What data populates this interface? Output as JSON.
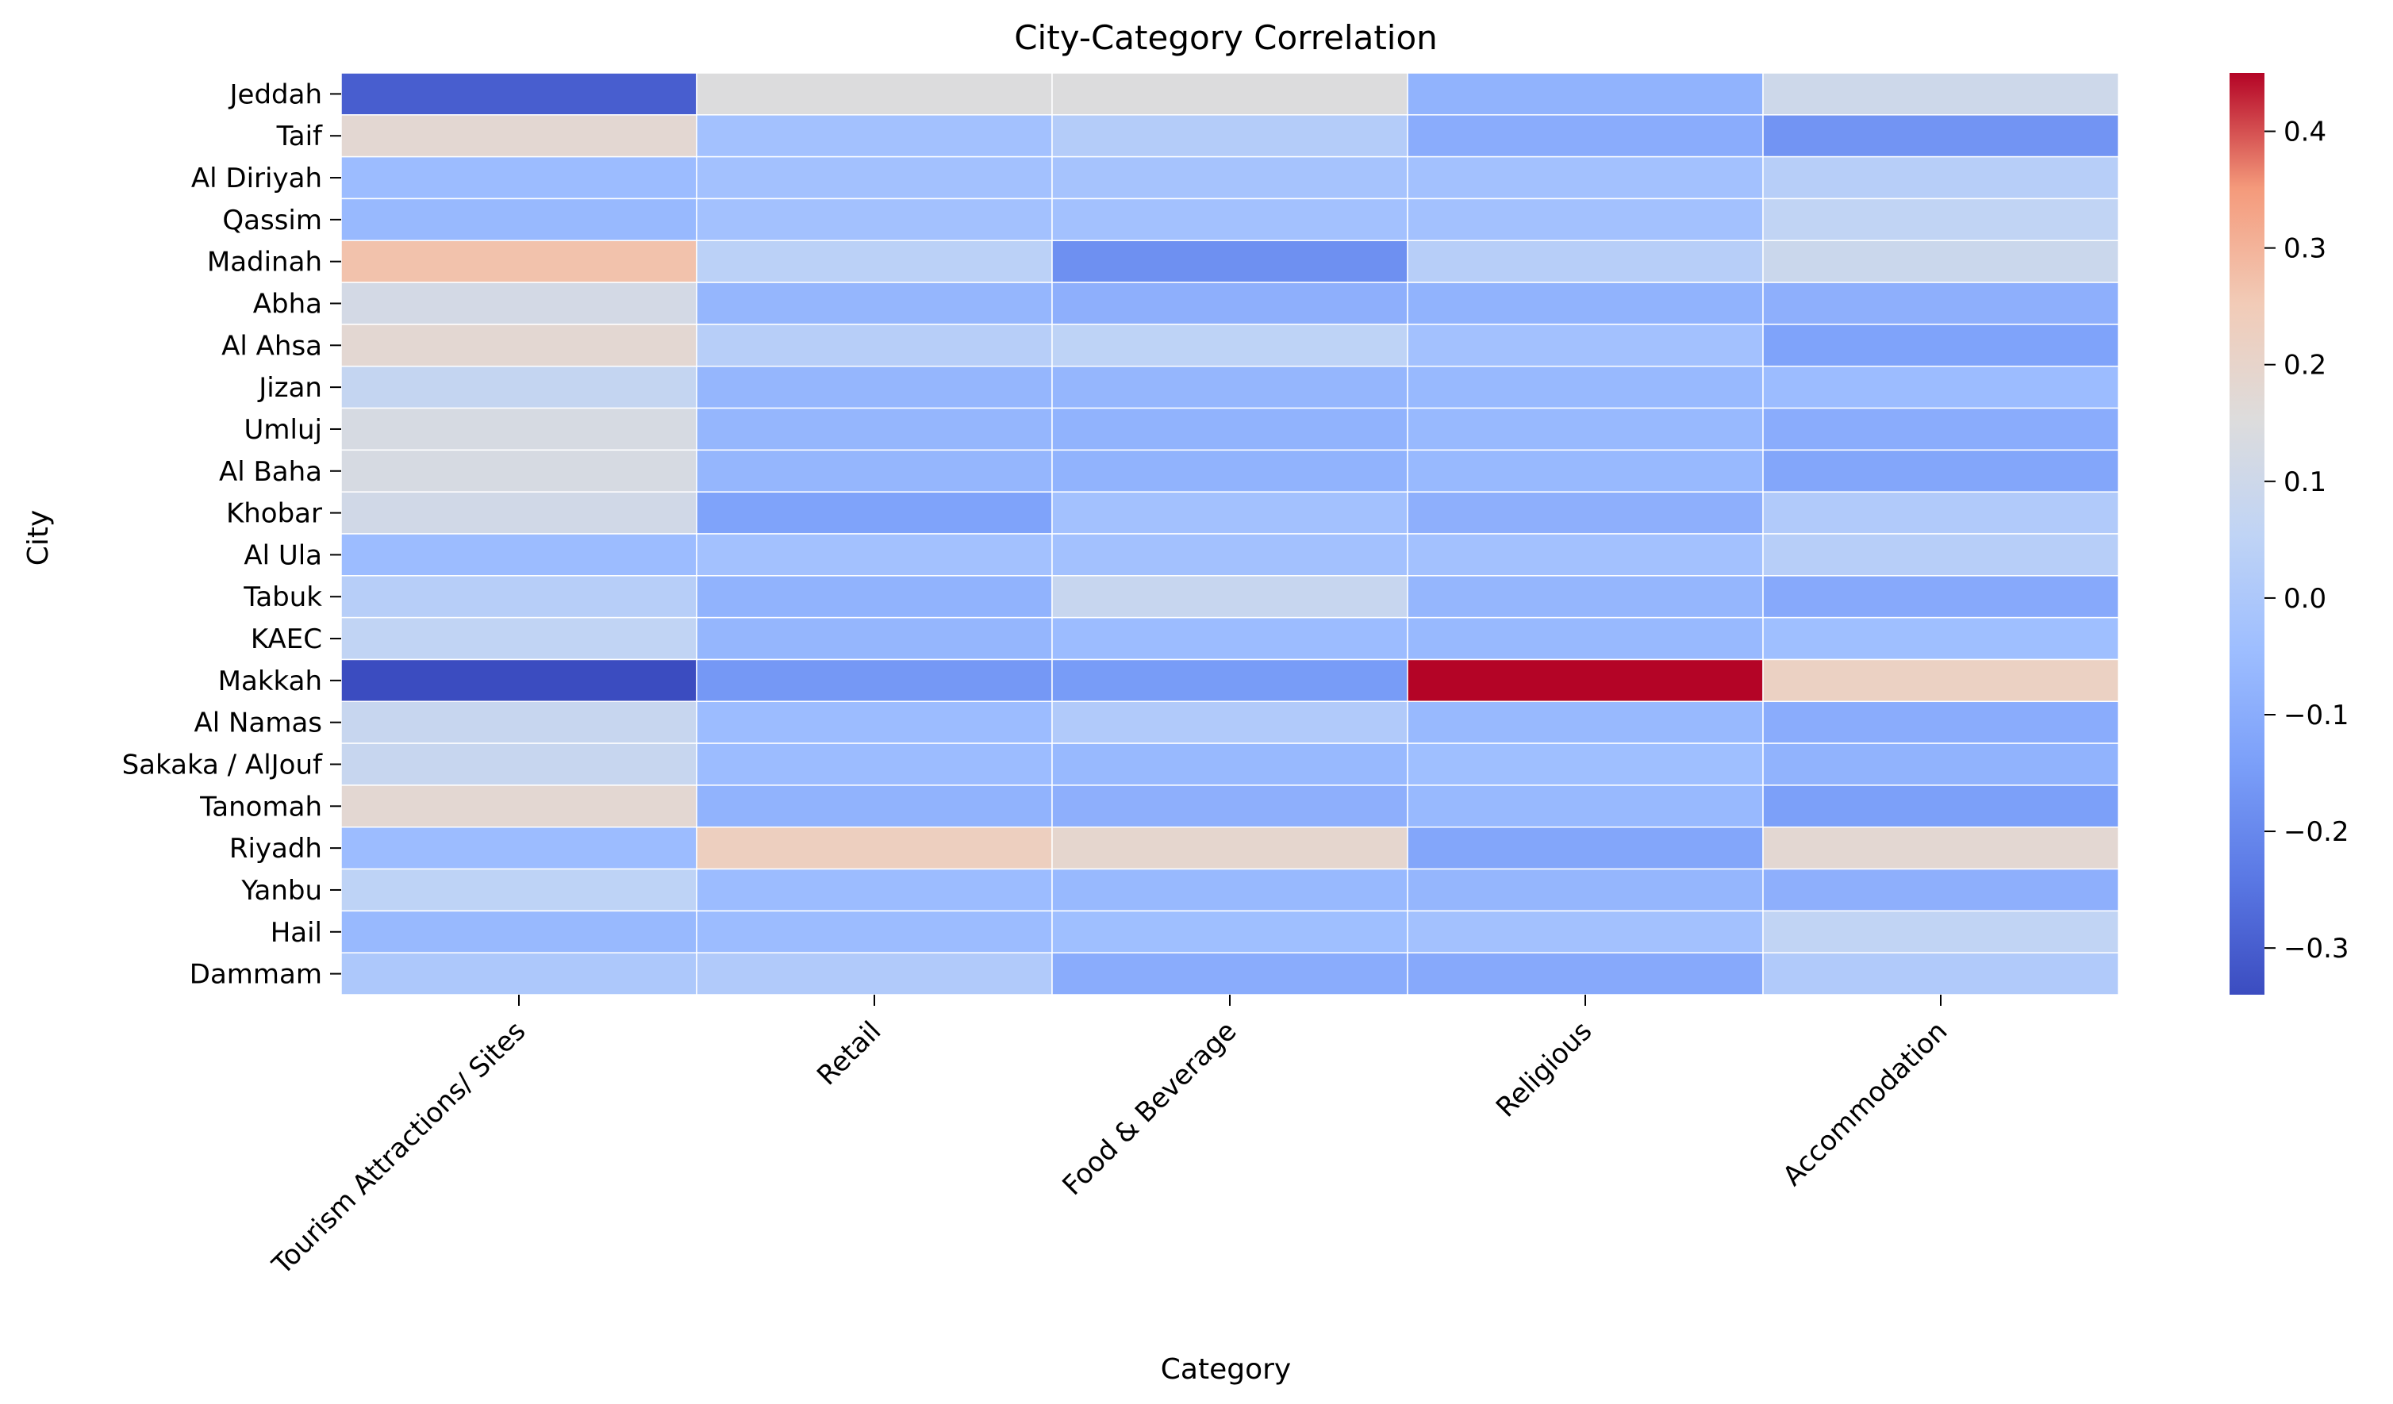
{
  "chart_data": {
    "type": "heatmap",
    "title": "City-Category Correlation",
    "xlabel": "Category",
    "ylabel": "City",
    "x_categories": [
      "Tourism Attractions/ Sites",
      "Retail",
      "Food & Beverage",
      "Religious",
      "Accommodation"
    ],
    "y_categories": [
      "Jeddah",
      "Taif",
      "Al Diriyah",
      "Qassim",
      "Madinah",
      "Abha",
      "Al Ahsa",
      "Jizan",
      "Umluj",
      "Al Baha",
      "Khobar",
      "Al Ula",
      "Tabuk",
      "KAEC",
      "Makkah",
      "Al Namas",
      "Sakaka / AlJouf",
      "Tanomah",
      "Riyadh",
      "Yanbu",
      "Hail",
      "Dammam"
    ],
    "values": [
      [
        -0.3,
        0.15,
        0.15,
        -0.08,
        0.1
      ],
      [
        0.18,
        -0.03,
        0.02,
        -0.1,
        -0.17
      ],
      [
        -0.05,
        -0.03,
        -0.02,
        -0.03,
        0.03
      ],
      [
        -0.06,
        -0.03,
        -0.03,
        -0.03,
        0.06
      ],
      [
        0.27,
        0.04,
        -0.18,
        0.03,
        0.09
      ],
      [
        0.12,
        -0.07,
        -0.09,
        -0.08,
        -0.09
      ],
      [
        0.18,
        0.03,
        0.05,
        -0.03,
        -0.13
      ],
      [
        0.07,
        -0.07,
        -0.07,
        -0.06,
        -0.05
      ],
      [
        0.13,
        -0.07,
        -0.08,
        -0.06,
        -0.1
      ],
      [
        0.13,
        -0.07,
        -0.08,
        -0.06,
        -0.12
      ],
      [
        0.11,
        -0.13,
        -0.03,
        -0.09,
        0.01
      ],
      [
        -0.05,
        -0.03,
        -0.03,
        -0.03,
        0.03
      ],
      [
        0.03,
        -0.08,
        0.08,
        -0.07,
        -0.11
      ],
      [
        0.06,
        -0.07,
        -0.05,
        -0.06,
        -0.04
      ],
      [
        -0.34,
        -0.16,
        -0.15,
        0.45,
        0.22
      ],
      [
        0.08,
        -0.05,
        0.01,
        -0.06,
        -0.1
      ],
      [
        0.08,
        -0.05,
        -0.06,
        -0.04,
        -0.08
      ],
      [
        0.18,
        -0.08,
        -0.09,
        -0.06,
        -0.14
      ],
      [
        -0.05,
        0.23,
        0.19,
        -0.12,
        0.18
      ],
      [
        0.05,
        -0.05,
        -0.06,
        -0.07,
        -0.09
      ],
      [
        -0.06,
        -0.05,
        -0.04,
        -0.03,
        0.06
      ],
      [
        0.0,
        0.01,
        -0.1,
        -0.11,
        0.01
      ]
    ],
    "colorbar": {
      "colormap": "coolwarm",
      "vmin": -0.34,
      "vmax": 0.45,
      "ticks": [
        "0.4",
        "0.3",
        "0.2",
        "0.1",
        "0.0",
        "−0.1",
        "−0.2",
        "−0.3"
      ],
      "tick_values": [
        0.4,
        0.3,
        0.2,
        0.1,
        0.0,
        -0.1,
        -0.2,
        -0.3
      ]
    },
    "grid": false,
    "legend": "colorbar-right"
  }
}
